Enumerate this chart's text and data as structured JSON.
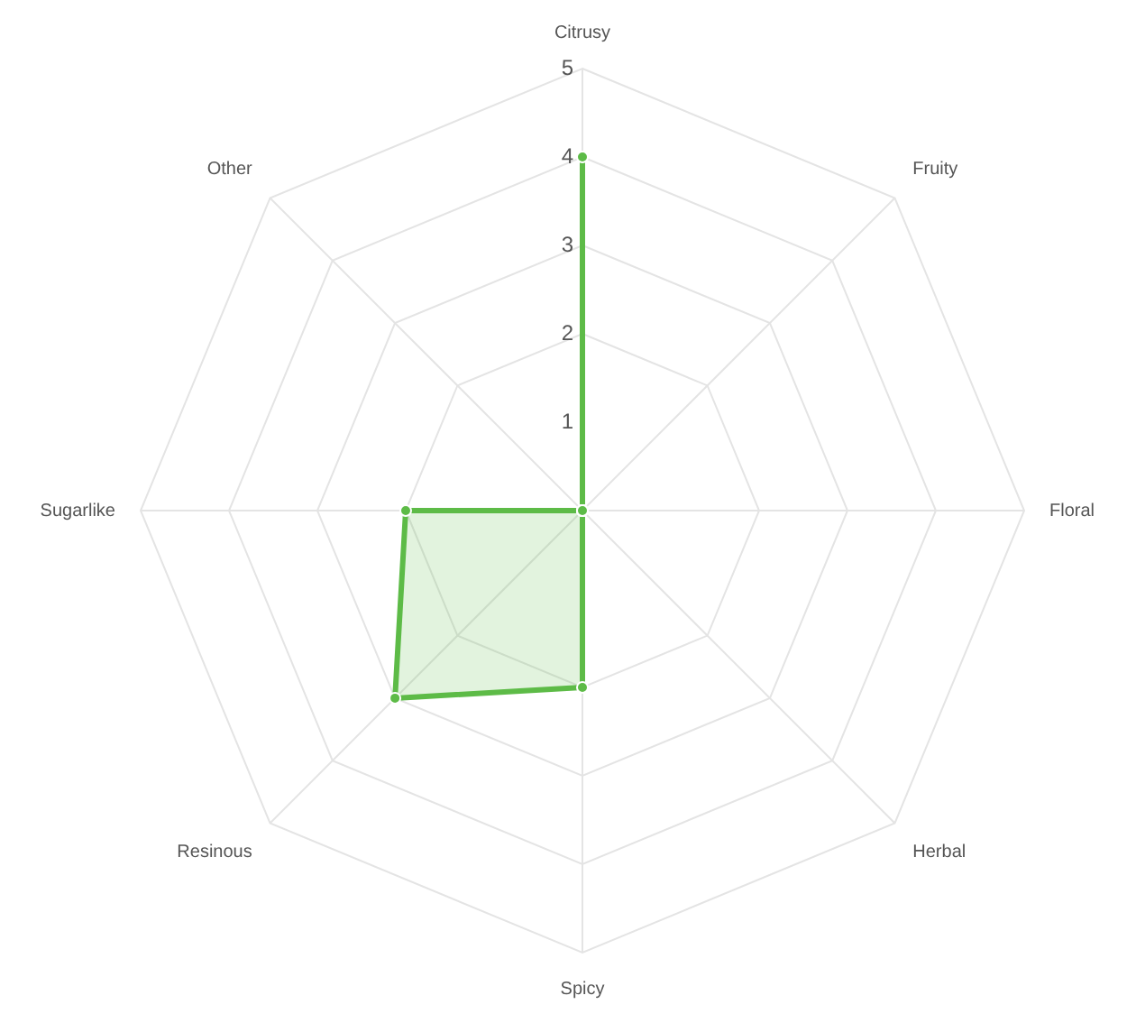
{
  "chart_data": {
    "type": "radar",
    "categories": [
      "Citrusy",
      "Fruity",
      "Floral",
      "Herbal",
      "Spicy",
      "Resinous",
      "Sugarlike",
      "Other"
    ],
    "series": [
      {
        "color": "#5dbb47",
        "values": [
          4,
          0,
          0,
          0,
          2,
          3,
          2,
          0
        ]
      }
    ],
    "ylim": [
      0,
      5
    ],
    "yticks": [
      1,
      2,
      3,
      4,
      5
    ],
    "grid": true,
    "legend": false,
    "marker": "circle"
  }
}
